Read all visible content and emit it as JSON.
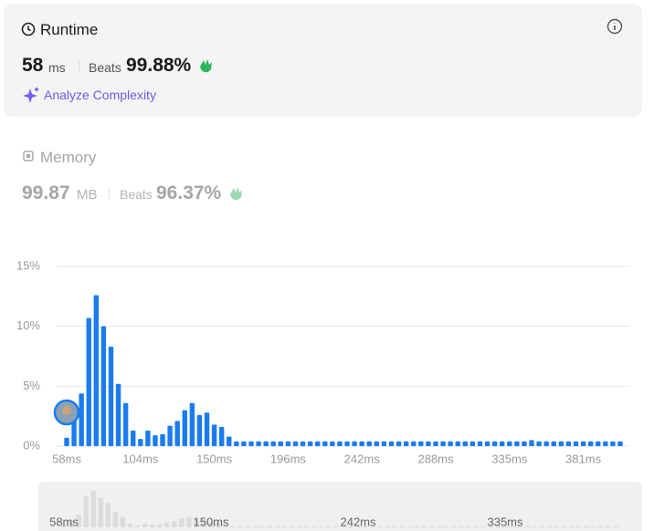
{
  "runtime": {
    "title": "Runtime",
    "value": "58",
    "unit": "ms",
    "beats_label": "Beats",
    "beats": "99.88%",
    "action": "Analyze Complexity"
  },
  "memory": {
    "title": "Memory",
    "value": "99.87",
    "unit": "MB",
    "beats_label": "Beats",
    "beats": "96.37%"
  },
  "chart_data": {
    "type": "bar",
    "categories": [
      "58ms",
      null,
      null,
      null,
      null,
      null,
      null,
      null,
      null,
      null,
      "104ms",
      null,
      null,
      null,
      null,
      null,
      null,
      null,
      null,
      null,
      "150ms",
      null,
      null,
      null,
      null,
      null,
      null,
      null,
      null,
      null,
      "196ms",
      null,
      null,
      null,
      null,
      null,
      null,
      null,
      null,
      null,
      "242ms",
      null,
      null,
      null,
      null,
      null,
      null,
      null,
      null,
      null,
      "288ms",
      null,
      null,
      null,
      null,
      null,
      null,
      null,
      null,
      null,
      "335ms",
      null,
      null,
      null,
      null,
      null,
      null,
      null,
      null,
      null,
      "381ms",
      null,
      null,
      null,
      null,
      null
    ],
    "values": [
      0.7,
      2.5,
      4.4,
      10.7,
      12.6,
      10.0,
      8.3,
      5.2,
      3.6,
      1.3,
      0.6,
      1.3,
      0.9,
      1.0,
      1.7,
      2.1,
      3.0,
      3.6,
      2.6,
      2.8,
      1.8,
      1.6,
      0.8,
      0.4,
      0.4,
      0.4,
      0.4,
      0.4,
      0.4,
      0.4,
      0.4,
      0.4,
      0.4,
      0.4,
      0.4,
      0.4,
      0.4,
      0.4,
      0.4,
      0.4,
      0.4,
      0.4,
      0.4,
      0.4,
      0.4,
      0.4,
      0.4,
      0.4,
      0.4,
      0.4,
      0.4,
      0.4,
      0.4,
      0.4,
      0.4,
      0.4,
      0.4,
      0.4,
      0.4,
      0.4,
      0.4,
      0.4,
      0.4,
      0.5,
      0.4,
      0.4,
      0.4,
      0.4,
      0.4,
      0.4,
      0.4,
      0.4,
      0.4,
      0.4,
      0.4,
      0.4
    ],
    "color": "#1a7cf0",
    "ylim": [
      0,
      15
    ],
    "yticks": [
      {
        "value": 0,
        "label": "0%"
      },
      {
        "value": 5,
        "label": "5%"
      },
      {
        "value": 10,
        "label": "10%"
      },
      {
        "value": 15,
        "label": "15%"
      }
    ],
    "grid": true
  },
  "brush": {
    "labels": [
      "58ms",
      "150ms",
      "242ms",
      "335ms"
    ]
  }
}
